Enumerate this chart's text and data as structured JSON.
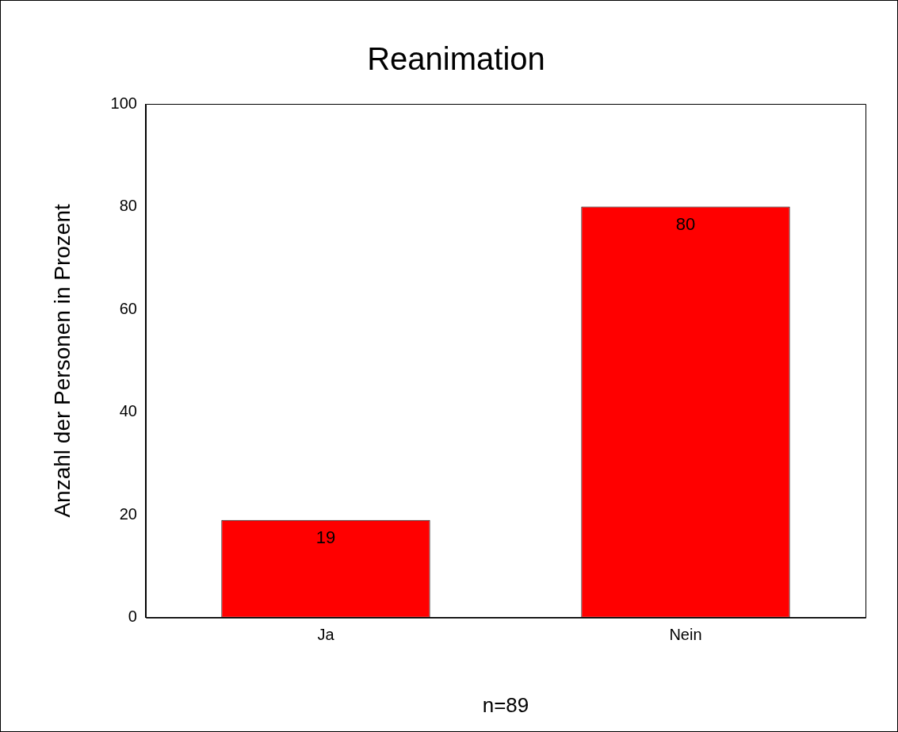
{
  "chart_data": {
    "type": "bar",
    "title": "Reanimation",
    "xlabel": "n=89",
    "ylabel": "Anzahl der Personen in Prozent",
    "categories": [
      "Ja",
      "Nein"
    ],
    "values": [
      19,
      80
    ],
    "color": "#ff0000",
    "ylim": [
      0,
      100
    ],
    "yticks": [
      0,
      20,
      40,
      60,
      80,
      100
    ],
    "grid": false,
    "legend": false,
    "data_labels": true
  }
}
